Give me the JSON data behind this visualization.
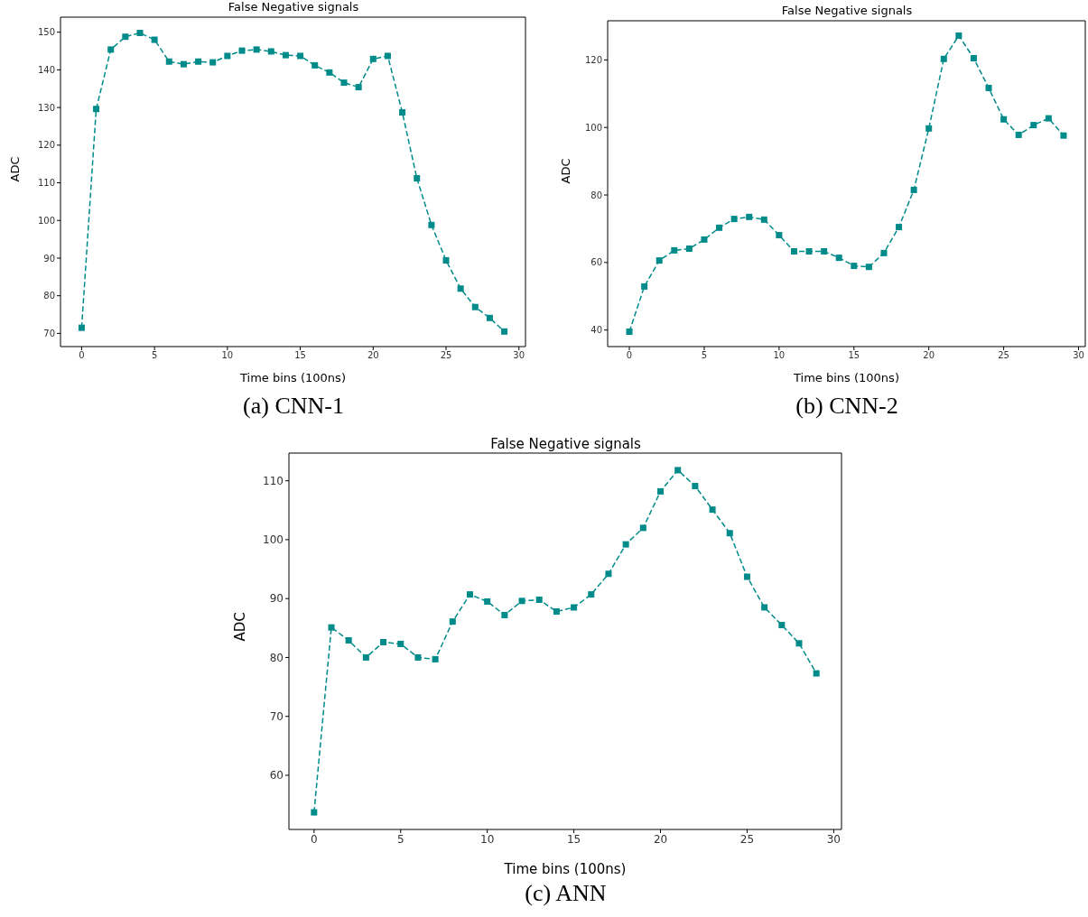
{
  "chart_data": [
    {
      "type": "line",
      "title": "False Negative signals",
      "xlabel": "Time bins (100ns)",
      "ylabel": "ADC",
      "annotations": [
        "(a) CNN-1"
      ],
      "marker": "square",
      "line_style": "dashed",
      "x": [
        0,
        1,
        2,
        3,
        4,
        5,
        6,
        7,
        8,
        9,
        10,
        11,
        12,
        13,
        14,
        15,
        16,
        17,
        18,
        19,
        20,
        21,
        22,
        23,
        24,
        25,
        26,
        27,
        28,
        29
      ],
      "series": [
        {
          "color": "#008b8b",
          "values": [
            71.5,
            129.6,
            145.4,
            148.8,
            149.8,
            148,
            142.2,
            141.5,
            142.2,
            142,
            143.7,
            145.1,
            145.4,
            144.9,
            143.9,
            143.7,
            141.2,
            139.3,
            136.6,
            135.4,
            142.9,
            143.7,
            128.7,
            111.2,
            98.8,
            89.4,
            81.9,
            77,
            74.1,
            70.5
          ]
        }
      ],
      "xlim": [
        -1.45,
        30.45
      ],
      "xticks": [
        0,
        5,
        10,
        15,
        20,
        25,
        30
      ],
      "ylim": [
        66.5,
        154
      ],
      "yticks": [
        70,
        80,
        90,
        100,
        110,
        120,
        130,
        140,
        150
      ]
    },
    {
      "type": "line",
      "title": "False Negative signals",
      "xlabel": "Time bins (100ns)",
      "ylabel": "ADC",
      "annotations": [
        "(b) CNN-2"
      ],
      "marker": "square",
      "line_style": "dashed",
      "x": [
        0,
        1,
        2,
        3,
        4,
        5,
        6,
        7,
        8,
        9,
        10,
        11,
        12,
        13,
        14,
        15,
        16,
        17,
        18,
        19,
        20,
        21,
        22,
        23,
        24,
        25,
        26,
        27,
        28,
        29
      ],
      "series": [
        {
          "color": "#008b8b",
          "values": [
            39.5,
            52.9,
            60.6,
            63.6,
            64.1,
            66.8,
            70.3,
            72.9,
            73.5,
            72.7,
            68.1,
            63.3,
            63.3,
            63.3,
            61.4,
            59,
            58.7,
            62.8,
            70.5,
            81.5,
            99.7,
            120.3,
            127.2,
            120.5,
            111.7,
            102.4,
            97.8,
            100.7,
            102.7,
            97.6
          ]
        }
      ],
      "xlim": [
        -1.45,
        30.45
      ],
      "xticks": [
        0,
        5,
        10,
        15,
        20,
        25,
        30
      ],
      "ylim": [
        35.1,
        131.6
      ],
      "yticks": [
        40,
        60,
        80,
        100,
        120
      ]
    },
    {
      "type": "line",
      "title": "False Negative signals",
      "xlabel": "Time bins (100ns)",
      "ylabel": "ADC",
      "annotations": [
        "(c) ANN"
      ],
      "marker": "square",
      "line_style": "dashed",
      "x": [
        0,
        1,
        2,
        3,
        4,
        5,
        6,
        7,
        8,
        9,
        10,
        11,
        12,
        13,
        14,
        15,
        16,
        17,
        18,
        19,
        20,
        21,
        22,
        23,
        24,
        25,
        26,
        27,
        28,
        29
      ],
      "series": [
        {
          "color": "#008b8b",
          "values": [
            53.7,
            85.1,
            82.9,
            80,
            82.6,
            82.3,
            80,
            79.7,
            86.1,
            90.7,
            89.5,
            87.2,
            89.6,
            89.8,
            87.8,
            88.5,
            90.7,
            94.2,
            99.2,
            102,
            108.2,
            111.8,
            109.1,
            105.1,
            101.1,
            93.7,
            88.5,
            85.5,
            82.4,
            77.3
          ]
        }
      ],
      "xlim": [
        -1.45,
        30.45
      ],
      "xticks": [
        0,
        5,
        10,
        15,
        20,
        25,
        30
      ],
      "ylim": [
        50.8,
        114.7
      ],
      "yticks": [
        60,
        70,
        80,
        90,
        100,
        110
      ]
    }
  ]
}
